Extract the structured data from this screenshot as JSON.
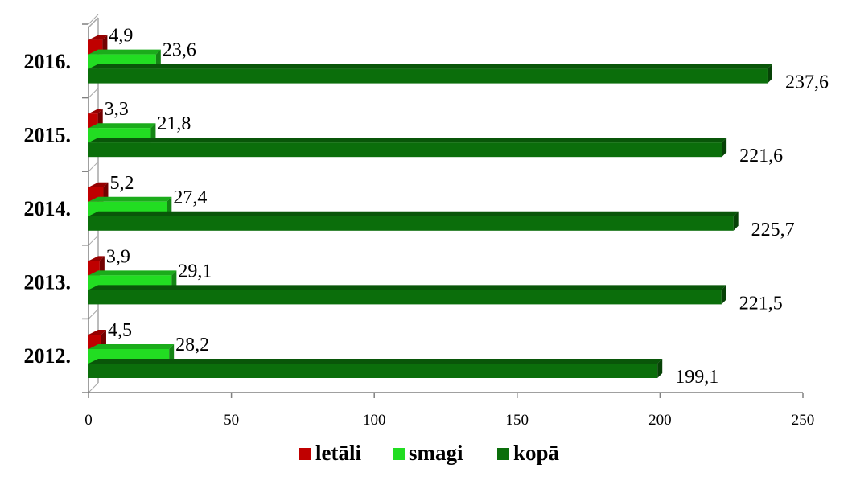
{
  "chart_data": {
    "type": "bar",
    "orientation": "horizontal",
    "title": "",
    "xlabel": "",
    "ylabel": "",
    "categories": [
      "2012.",
      "2013.",
      "2014.",
      "2015.",
      "2016."
    ],
    "xlim": [
      0,
      250
    ],
    "xticks": [
      "0",
      "50",
      "100",
      "150",
      "200",
      "250"
    ],
    "grid": true,
    "legend_position": "bottom",
    "series": [
      {
        "name": "letāli",
        "color": "#c00000",
        "values": [
          4.5,
          3.9,
          5.2,
          3.3,
          4.9
        ],
        "labels": [
          "4,5",
          "3,9",
          "5,2",
          "3,3",
          "4,9"
        ]
      },
      {
        "name": "smagi",
        "color": "#22dd22",
        "values": [
          28.2,
          29.1,
          27.4,
          21.8,
          23.6
        ],
        "labels": [
          "28,2",
          "29,1",
          "27,4",
          "21,8",
          "23,6"
        ]
      },
      {
        "name": "kopā",
        "color": "#0b6e0b",
        "values": [
          199.1,
          221.5,
          225.7,
          221.6,
          237.6
        ],
        "labels": [
          "199,1",
          "221,5",
          "225,7",
          "221,6",
          "237,6"
        ]
      }
    ]
  }
}
